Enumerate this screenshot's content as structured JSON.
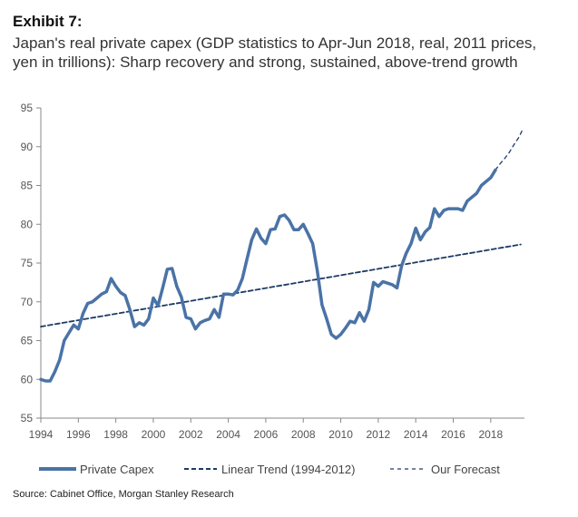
{
  "header": {
    "exhibit": "Exhibit 7:",
    "title": "Japan's real private capex (GDP statistics to Apr-Jun 2018, real, 2011 prices, yen in trillions): Sharp recovery and strong, sustained, above-trend growth"
  },
  "source": "Source: Cabinet Office, Morgan Stanley Research",
  "colors": {
    "actual": "#4a73a6",
    "trend": "#1d3a66",
    "forecast": "#1d3a66",
    "axis": "#888888"
  },
  "chart_data": {
    "type": "line",
    "title": "",
    "xlabel": "",
    "ylabel": "",
    "xlim": [
      1994,
      2019.8
    ],
    "ylim": [
      55,
      95
    ],
    "y_ticks": [
      "55",
      "60",
      "65",
      "70",
      "75",
      "80",
      "85",
      "90",
      "95"
    ],
    "x_ticks": [
      "1994",
      "1996",
      "1998",
      "2000",
      "2002",
      "2004",
      "2006",
      "2008",
      "2010",
      "2012",
      "2014",
      "2016",
      "2018"
    ],
    "grid": false,
    "legend_position": "bottom",
    "series": [
      {
        "name": "Private Capex",
        "style": "solid-thick",
        "x": [
          1994.0,
          1994.25,
          1994.5,
          1994.75,
          1995.0,
          1995.25,
          1995.5,
          1995.75,
          1996.0,
          1996.25,
          1996.5,
          1996.75,
          1997.0,
          1997.25,
          1997.5,
          1997.75,
          1998.0,
          1998.25,
          1998.5,
          1998.75,
          1999.0,
          1999.25,
          1999.5,
          1999.75,
          2000.0,
          2000.25,
          2000.5,
          2000.75,
          2001.0,
          2001.25,
          2001.5,
          2001.75,
          2002.0,
          2002.25,
          2002.5,
          2002.75,
          2003.0,
          2003.25,
          2003.5,
          2003.75,
          2004.0,
          2004.25,
          2004.5,
          2004.75,
          2005.0,
          2005.25,
          2005.5,
          2005.75,
          2006.0,
          2006.25,
          2006.5,
          2006.75,
          2007.0,
          2007.25,
          2007.5,
          2007.75,
          2008.0,
          2008.25,
          2008.5,
          2008.75,
          2009.0,
          2009.25,
          2009.5,
          2009.75,
          2010.0,
          2010.25,
          2010.5,
          2010.75,
          2011.0,
          2011.25,
          2011.5,
          2011.75,
          2012.0,
          2012.25,
          2012.5,
          2012.75,
          2013.0,
          2013.25,
          2013.5,
          2013.75,
          2014.0,
          2014.25,
          2014.5,
          2014.75,
          2015.0,
          2015.25,
          2015.5,
          2015.75,
          2016.0,
          2016.25,
          2016.5,
          2016.75,
          2017.0,
          2017.25,
          2017.5,
          2017.75,
          2018.0,
          2018.25
        ],
        "values": [
          60.0,
          59.8,
          59.8,
          61.0,
          62.5,
          65.0,
          66.0,
          67.0,
          66.5,
          68.5,
          69.8,
          70.0,
          70.5,
          71.0,
          71.3,
          73.0,
          72.0,
          71.2,
          70.8,
          69.0,
          66.8,
          67.3,
          67.0,
          67.8,
          70.5,
          69.5,
          71.8,
          74.2,
          74.3,
          72.0,
          70.6,
          68.0,
          67.8,
          66.5,
          67.3,
          67.6,
          67.8,
          69.0,
          68.0,
          71.0,
          71.0,
          70.9,
          71.5,
          73.0,
          75.5,
          78.0,
          79.4,
          78.2,
          77.5,
          79.3,
          79.4,
          81.0,
          81.2,
          80.5,
          79.3,
          79.3,
          80.0,
          78.8,
          77.5,
          74.0,
          69.6,
          67.8,
          65.8,
          65.3,
          65.8,
          66.6,
          67.5,
          67.3,
          68.6,
          67.5,
          69.0,
          72.5,
          72.0,
          72.6,
          72.4,
          72.2,
          71.8,
          74.7,
          76.3,
          77.5,
          79.5,
          78.0,
          79.0,
          79.6,
          82.0,
          81.0,
          81.8,
          82.0,
          82.0,
          82.0,
          81.8,
          83.0,
          83.5,
          84.0,
          85.0,
          85.5,
          86.0,
          87.0
        ]
      },
      {
        "name": "Linear Trend (1994-2012)",
        "style": "dashed-medium",
        "x": [
          1994.0,
          2019.6
        ],
        "values": [
          66.8,
          77.4
        ]
      },
      {
        "name": "Our Forecast",
        "style": "dashed-thin",
        "x": [
          2018.25,
          2018.5,
          2018.75,
          2019.0,
          2019.25,
          2019.5,
          2019.7
        ],
        "values": [
          87.0,
          87.8,
          88.5,
          89.3,
          90.3,
          91.2,
          92.2
        ]
      }
    ]
  }
}
